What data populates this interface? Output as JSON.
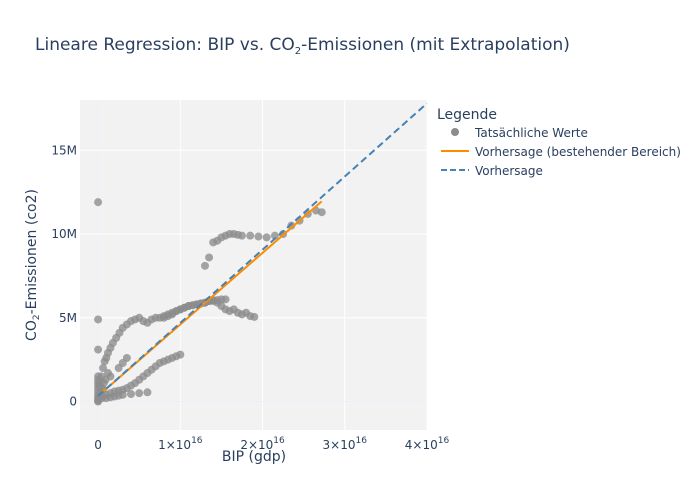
{
  "chart_data": {
    "type": "scatter",
    "title": {
      "prefix": "Lineare Regression: BIP vs. CO",
      "subscript": "2",
      "suffix": "-Emissionen (mit Extrapolation)"
    },
    "xlabel": "BIP (gdp)",
    "ylabel": {
      "prefix": "CO",
      "subscript": "2",
      "suffix": "-Emissionen (co2)"
    },
    "xlim": [
      -2200000000000000.0,
      4e+16
    ],
    "ylim": [
      -1700000.0,
      18000000.0
    ],
    "x_ticks": [
      {
        "value": 0,
        "mantissa": "0",
        "exponent": ""
      },
      {
        "value": 1e+16,
        "mantissa": "1×10",
        "exponent": "16"
      },
      {
        "value": 2e+16,
        "mantissa": "2×10",
        "exponent": "16"
      },
      {
        "value": 3e+16,
        "mantissa": "3×10",
        "exponent": "16"
      },
      {
        "value": 4e+16,
        "mantissa": "4×10",
        "exponent": "16"
      }
    ],
    "y_ticks": [
      {
        "value": 0,
        "label": "0"
      },
      {
        "value": 5000000.0,
        "label": "5M"
      },
      {
        "value": 10000000.0,
        "label": "10M"
      },
      {
        "value": 15000000.0,
        "label": "15M"
      }
    ],
    "grid": true,
    "legend": {
      "title": "Legende",
      "placement": "right",
      "entries": [
        "Tatsächliche Werte",
        "Vorhersage (bestehender Bereich)",
        "Vorhersage"
      ]
    },
    "colors": {
      "scatter": "#8c8c8c",
      "fit_line": "#ff8c00",
      "extrapolation_line": "#4682b4",
      "plot_bg": "#f2f2f2",
      "grid": "#ffffff",
      "text": "#2a3f5f"
    },
    "series": [
      {
        "name": "Tatsächliche Werte",
        "mode": "markers",
        "x": [
          0,
          0,
          0,
          0,
          0,
          0,
          0,
          0,
          0,
          0,
          0,
          0,
          0,
          200000000000000.0,
          400000000000000.0,
          600000000000000.0,
          800000000000000.0,
          1000000000000000.0,
          1200000000000000.0,
          1500000000000000.0,
          1800000000000000.0,
          2200000000000000.0,
          2600000000000000.0,
          3000000000000000.0,
          3500000000000000.0,
          4000000000000000.0,
          4500000000000000.0,
          5000000000000000.0,
          5500000000000000.0,
          6000000000000000.0,
          6500000000000000.0,
          7000000000000000.0,
          7500000000000000.0,
          8000000000000000.0,
          8500000000000000.0,
          9000000000000000.0,
          9500000000000000.0,
          1e+16,
          1.05e+16,
          1.1e+16,
          1.15e+16,
          1.2e+16,
          1.25e+16,
          1.3e+16,
          1.35e+16,
          1.4e+16,
          1.45e+16,
          1.5e+16,
          1.55e+16,
          8000000000000000.0,
          8500000000000000.0,
          9000000000000000.0,
          9500000000000000.0,
          1e+16,
          1.05e+16,
          1.1e+16,
          1.15e+16,
          1.2e+16,
          1.25e+16,
          1.3e+16,
          1.35e+16,
          1.4e+16,
          1.45e+16,
          1.5e+16,
          1.55e+16,
          1.6e+16,
          1.65e+16,
          1.7e+16,
          1.75e+16,
          1.8e+16,
          1.85e+16,
          1.9e+16,
          1.3e+16,
          1.35e+16,
          1.4e+16,
          1.45e+16,
          1.5e+16,
          1.55e+16,
          1.6e+16,
          1.65e+16,
          1.7e+16,
          1.75e+16,
          1.85e+16,
          1.95e+16,
          2.05e+16,
          2.15e+16,
          2.25e+16,
          2.35e+16,
          2.45e+16,
          2.55e+16,
          2.65e+16,
          2.72e+16,
          500000000000000.0,
          1000000000000000.0,
          1500000000000000.0,
          2000000000000000.0,
          2500000000000000.0,
          3000000000000000.0,
          3500000000000000.0,
          4000000000000000.0,
          4500000000000000.0,
          5000000000000000.0,
          5500000000000000.0,
          6000000000000000.0,
          6500000000000000.0,
          7000000000000000.0,
          7500000000000000.0,
          8000000000000000.0,
          8500000000000000.0,
          9000000000000000.0,
          9500000000000000.0,
          1e+16,
          1000000000000000.0,
          1500000000000000.0,
          2000000000000000.0,
          2500000000000000.0,
          3000000000000000.0,
          4000000000000000.0,
          5000000000000000.0,
          6000000000000000.0,
          1500000000000000.0,
          2500000000000000.0,
          3000000000000000.0,
          3500000000000000.0,
          500000000000000.0,
          700000000000000.0,
          900000000000000.0,
          1200000000000000.0,
          300000000000000.0,
          600000000000000.0,
          100000000000000.0,
          500000000000000.0
        ],
        "y": [
          11900000.0,
          4900000.0,
          3100000.0,
          1500000.0,
          1300000.0,
          1100000.0,
          900000.0,
          700000.0,
          500000.0,
          300000.0,
          150000.0,
          50000.0,
          0,
          1000000.0,
          1500000.0,
          2000000.0,
          2400000.0,
          2600000.0,
          2900000.0,
          3200000.0,
          3500000.0,
          3800000.0,
          4100000.0,
          4400000.0,
          4600000.0,
          4800000.0,
          4900000.0,
          5000000.0,
          4800000.0,
          4700000.0,
          4900000.0,
          5000000.0,
          5000000.0,
          5100000.0,
          5200000.0,
          5300000.0,
          5400000.0,
          5500000.0,
          5600000.0,
          5700000.0,
          5750000.0,
          5800000.0,
          5850000.0,
          5900000.0,
          6000000.0,
          6050000.0,
          6050000.0,
          6100000.0,
          6100000.0,
          5000000.0,
          5100000.0,
          5200000.0,
          5400000.0,
          5500000.0,
          5600000.0,
          5700000.0,
          5750000.0,
          5800000.0,
          5850000.0,
          5900000.0,
          6000000.0,
          6000000.0,
          5900000.0,
          5700000.0,
          5500000.0,
          5400000.0,
          5500000.0,
          5300000.0,
          5200000.0,
          5300000.0,
          5100000.0,
          5050000.0,
          8100000.0,
          8600000.0,
          9500000.0,
          9600000.0,
          9800000.0,
          9900000.0,
          10000000.0,
          10000000.0,
          9950000.0,
          9900000.0,
          9900000.0,
          9850000.0,
          9800000.0,
          9900000.0,
          10000000.0,
          10500000.0,
          10800000.0,
          11200000.0,
          11400000.0,
          11300000.0,
          300000.0,
          400000.0,
          500000.0,
          600000.0,
          650000.0,
          700000.0,
          800000.0,
          950000.0,
          1100000.0,
          1300000.0,
          1500000.0,
          1700000.0,
          1900000.0,
          2100000.0,
          2300000.0,
          2400000.0,
          2500000.0,
          2600000.0,
          2700000.0,
          2800000.0,
          200000.0,
          250000.0,
          300000.0,
          350000.0,
          400000.0,
          450000.0,
          500000.0,
          550000.0,
          1500000.0,
          2000000.0,
          2300000.0,
          2600000.0,
          800000.0,
          1100000.0,
          1300000.0,
          1700000.0,
          400000.0,
          700000.0,
          300000.0,
          200000.0
        ]
      },
      {
        "name": "Vorhersage (bestehender Bereich)",
        "mode": "lines",
        "x": [
          0,
          2.72e+16
        ],
        "y": [
          330000.0,
          11950000.0
        ]
      },
      {
        "name": "Vorhersage",
        "mode": "lines",
        "dash": true,
        "x": [
          0,
          4e+16
        ],
        "y": [
          330000.0,
          17800000.0
        ]
      }
    ]
  }
}
